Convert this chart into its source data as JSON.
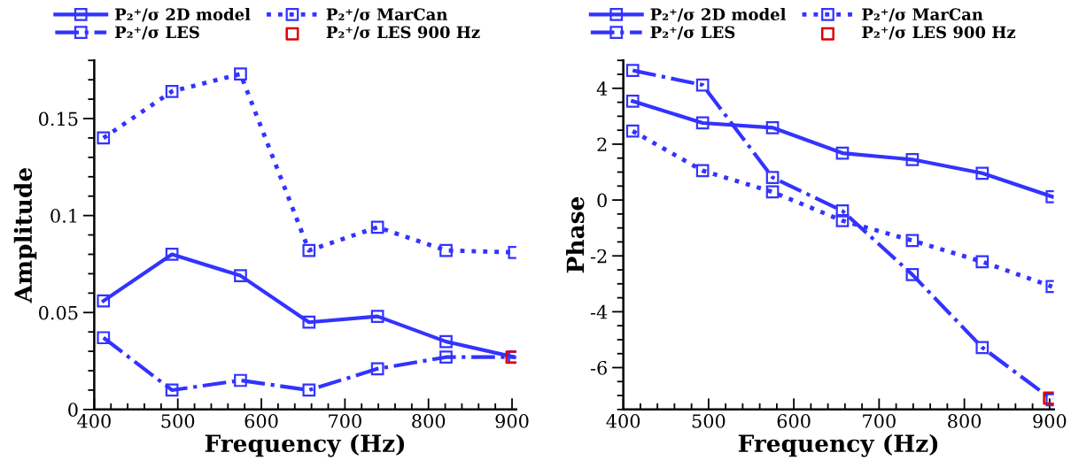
{
  "chart_data": [
    {
      "type": "line",
      "xlabel": "Frequency (Hz)",
      "ylabel": "Amplitude",
      "x": [
        411,
        493,
        575,
        657,
        739,
        821,
        903
      ],
      "xlim": [
        400,
        905
      ],
      "xticks": [
        400,
        500,
        600,
        700,
        800,
        900
      ],
      "ylim": [
        0,
        0.18
      ],
      "yticks": [
        0,
        0.05,
        0.1,
        0.15
      ],
      "legend": "top",
      "marker": "square",
      "grid": false,
      "series": [
        {
          "name": "P₂⁺/σ 2D model",
          "color": "#3333ff",
          "line_style": "solid",
          "values": [
            0.056,
            0.08,
            0.069,
            0.045,
            0.048,
            0.035,
            0.027
          ]
        },
        {
          "name": "P₂⁺/σ MarCan",
          "color": "#3333ff",
          "line_style": "dotted",
          "values": [
            0.14,
            0.164,
            0.173,
            0.082,
            0.094,
            0.082,
            0.081
          ]
        },
        {
          "name": "P₂⁺/σ LES",
          "color": "#3333ff",
          "line_style": "dashdot",
          "values": [
            0.037,
            0.01,
            0.015,
            0.01,
            0.021,
            0.027,
            0.027
          ]
        },
        {
          "name": "P₂⁺/σ LES 900 Hz",
          "type": "scatter",
          "color": "#dd0000",
          "x": [
            900
          ],
          "values": [
            0.027
          ]
        }
      ]
    },
    {
      "type": "line",
      "xlabel": "Frequency (Hz)",
      "ylabel": "Phase",
      "x": [
        411,
        493,
        575,
        657,
        739,
        821,
        903
      ],
      "xlim": [
        400,
        905
      ],
      "xticks": [
        400,
        500,
        600,
        700,
        800,
        900
      ],
      "ylim": [
        -7.5,
        5
      ],
      "yticks": [
        {
          "value": -6,
          "label": "-6"
        },
        {
          "value": -4,
          "label": "-4"
        },
        {
          "value": -2,
          "label": "-2"
        },
        0,
        2,
        4
      ],
      "legend": "top",
      "marker": "square",
      "grid": false,
      "series": [
        {
          "name": "P₂⁺/σ 2D model",
          "color": "#3333ff",
          "line_style": "solid",
          "values": [
            3.54,
            2.76,
            2.59,
            1.68,
            1.45,
            0.96,
            0.12
          ]
        },
        {
          "name": "P₂⁺/σ MarCan",
          "color": "#3333ff",
          "line_style": "dotted",
          "values": [
            2.47,
            1.05,
            0.29,
            -0.74,
            -1.45,
            -2.21,
            -3.1
          ]
        },
        {
          "name": "P₂⁺/σ LES",
          "color": "#3333ff",
          "line_style": "dashdot",
          "values": [
            4.64,
            4.12,
            0.81,
            -0.39,
            -2.67,
            -5.28,
            -7.15
          ]
        },
        {
          "name": "P₂⁺/σ LES 900 Hz",
          "type": "scatter",
          "color": "#dd0000",
          "x": [
            900
          ],
          "values": [
            -7.09
          ]
        }
      ]
    }
  ]
}
